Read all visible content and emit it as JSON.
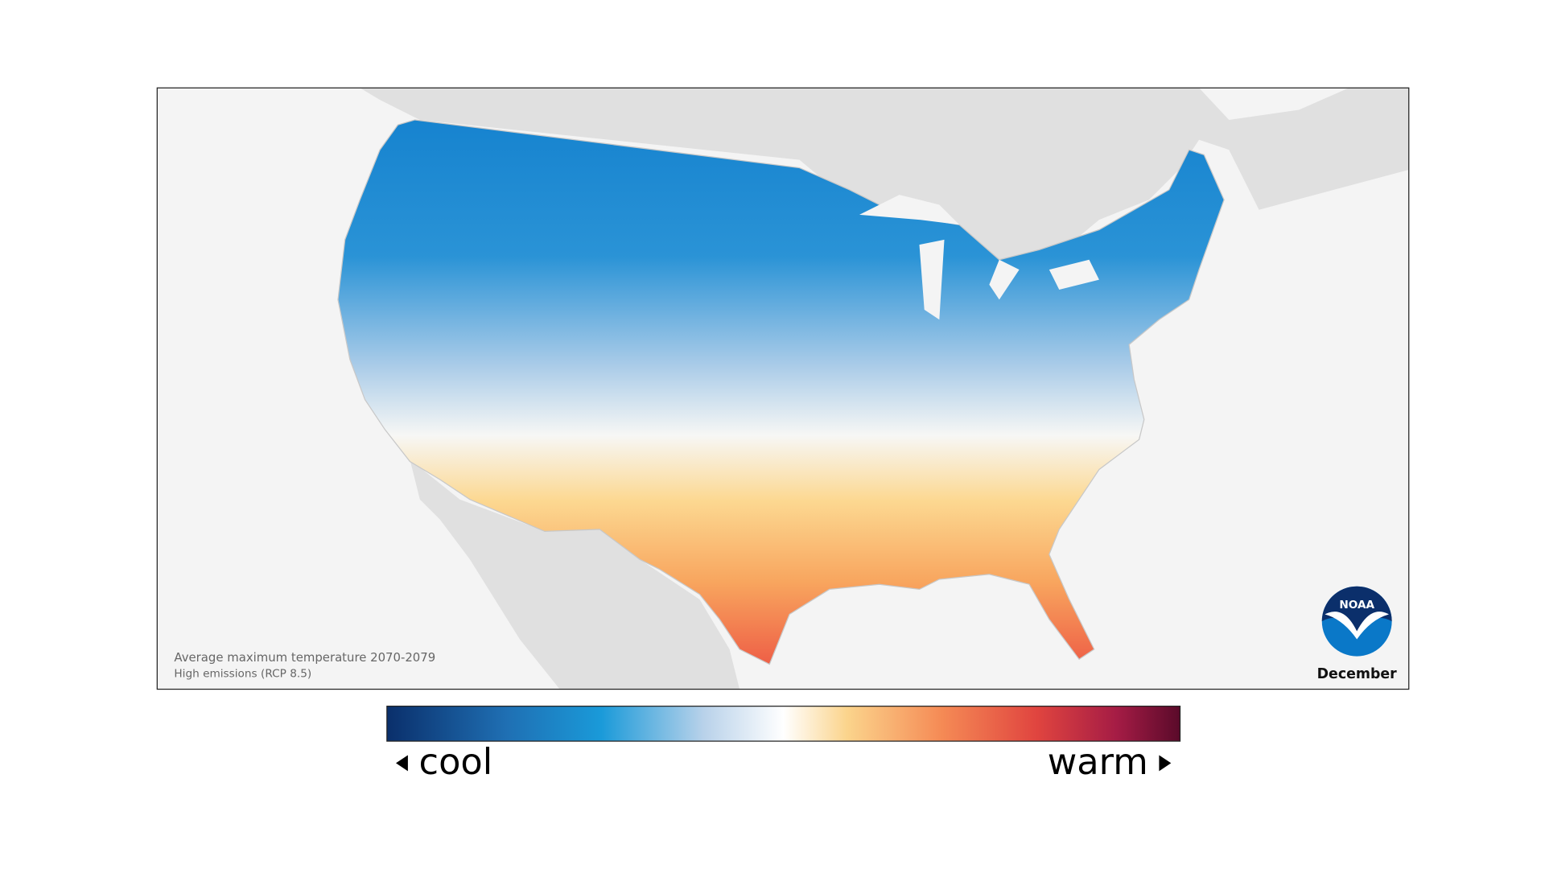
{
  "map": {
    "caption": "Average maximum temperature 2070-2079",
    "subcaption": "High emissions (RCP 8.5)",
    "month": "December",
    "logo": "NOAA"
  },
  "legend": {
    "low": "cool",
    "high": "warm"
  }
}
